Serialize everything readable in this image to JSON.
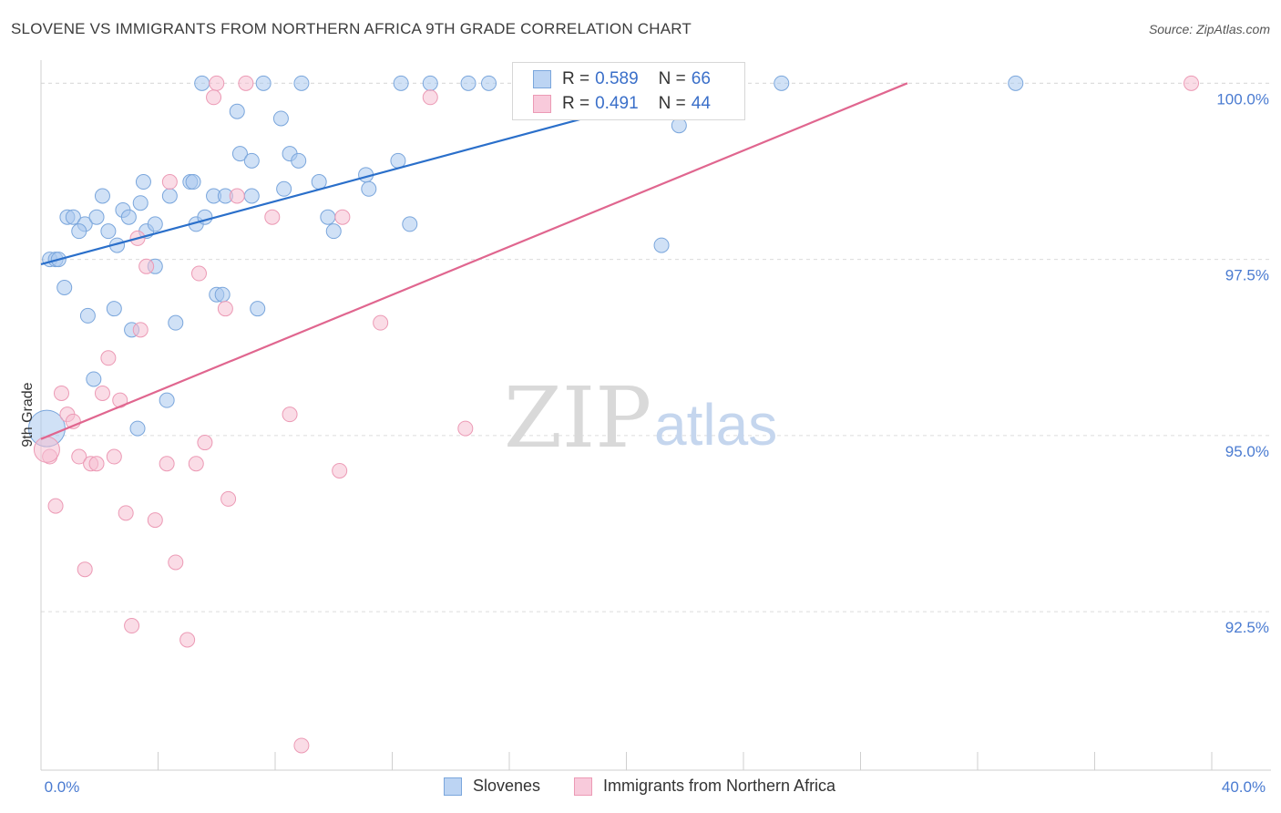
{
  "title": "SLOVENE VS IMMIGRANTS FROM NORTHERN AFRICA 9TH GRADE CORRELATION CHART",
  "source": "Source: ZipAtlas.com",
  "watermark": {
    "zip": "ZIP",
    "atlas": "atlas"
  },
  "legend": {
    "rows": [
      {
        "r_label": "R =",
        "r_value": "0.589",
        "n_label": "N =",
        "n_value": "66"
      },
      {
        "r_label": "R =",
        "r_value": "0.491",
        "n_label": "N =",
        "n_value": "44"
      }
    ]
  },
  "bottom_legend": [
    "Slovenes",
    "Immigrants from Northern Africa"
  ],
  "colors": {
    "blue_fill": "#a9c8ef",
    "blue_stroke": "#7aa6dc",
    "blue_line": "#2a6fca",
    "pink_fill": "#f6bfd1",
    "pink_stroke": "#ec9ab5",
    "pink_line": "#e0668f",
    "axis_text": "#4a7bd1",
    "grid": "#dcdcdc"
  },
  "chart_data": {
    "type": "scatter",
    "title": "SLOVENE VS IMMIGRANTS FROM NORTHERN AFRICA 9TH GRADE CORRELATION CHART",
    "xlabel": "",
    "ylabel": "9th Grade",
    "xlim": [
      0,
      40
    ],
    "ylim": [
      90.25,
      100.25
    ],
    "x_tick_labels": [
      "0.0%",
      "40.0%"
    ],
    "y_ticks": [
      92.5,
      95.0,
      97.5,
      100.0
    ],
    "y_tick_labels": [
      "92.5%",
      "95.0%",
      "97.5%",
      "100.0%"
    ],
    "grid": true,
    "legend_position": "top-center",
    "series": [
      {
        "name": "Slovenes",
        "color": "#a9c8ef",
        "trend": {
          "x": [
            0.0,
            23.0
          ],
          "y": [
            97.43,
            100.0
          ]
        },
        "points": [
          [
            5.5,
            100.0
          ],
          [
            7.6,
            100.0
          ],
          [
            8.9,
            100.0
          ],
          [
            12.3,
            100.0
          ],
          [
            13.3,
            100.0
          ],
          [
            14.6,
            100.0
          ],
          [
            15.3,
            100.0
          ],
          [
            25.3,
            100.0
          ],
          [
            33.3,
            100.0
          ],
          [
            6.7,
            99.6
          ],
          [
            8.2,
            99.5
          ],
          [
            21.8,
            99.4
          ],
          [
            6.8,
            99.0
          ],
          [
            7.2,
            98.9
          ],
          [
            8.5,
            99.0
          ],
          [
            8.8,
            98.9
          ],
          [
            12.2,
            98.9
          ],
          [
            3.5,
            98.6
          ],
          [
            5.1,
            98.6
          ],
          [
            5.2,
            98.6
          ],
          [
            8.3,
            98.5
          ],
          [
            9.5,
            98.6
          ],
          [
            11.1,
            98.7
          ],
          [
            2.1,
            98.4
          ],
          [
            3.4,
            98.3
          ],
          [
            4.4,
            98.4
          ],
          [
            5.9,
            98.4
          ],
          [
            6.3,
            98.4
          ],
          [
            7.2,
            98.4
          ],
          [
            11.2,
            98.5
          ],
          [
            0.9,
            98.1
          ],
          [
            1.1,
            98.1
          ],
          [
            1.5,
            98.0
          ],
          [
            1.9,
            98.1
          ],
          [
            2.8,
            98.2
          ],
          [
            3.0,
            98.1
          ],
          [
            3.6,
            97.9
          ],
          [
            3.9,
            98.0
          ],
          [
            5.3,
            98.0
          ],
          [
            5.6,
            98.1
          ],
          [
            9.8,
            98.1
          ],
          [
            10.0,
            97.9
          ],
          [
            12.6,
            98.0
          ],
          [
            1.3,
            97.9
          ],
          [
            2.3,
            97.9
          ],
          [
            2.6,
            97.7
          ],
          [
            21.2,
            97.7
          ],
          [
            0.3,
            97.5
          ],
          [
            0.5,
            97.5
          ],
          [
            0.6,
            97.5
          ],
          [
            3.9,
            97.4
          ],
          [
            0.8,
            97.1
          ],
          [
            6.0,
            97.0
          ],
          [
            6.2,
            97.0
          ],
          [
            1.6,
            96.7
          ],
          [
            2.5,
            96.8
          ],
          [
            4.6,
            96.6
          ],
          [
            7.4,
            96.8
          ],
          [
            3.1,
            96.5
          ],
          [
            1.8,
            95.8
          ],
          [
            4.3,
            95.5
          ],
          [
            3.3,
            95.1
          ],
          [
            0.2,
            95.1
          ],
          [
            3.1,
            96.5
          ],
          [
            5.2,
            98.4
          ],
          [
            10.9,
            98.1
          ]
        ],
        "point_radii": [
          8,
          8,
          8,
          8,
          8,
          8,
          8,
          8,
          8,
          8,
          8,
          8,
          8,
          8,
          8,
          8,
          8,
          8,
          8,
          8,
          8,
          8,
          8,
          8,
          8,
          8,
          8,
          8,
          8,
          8,
          8,
          8,
          8,
          8,
          8,
          8,
          8,
          8,
          8,
          8,
          8,
          8,
          8,
          8,
          8,
          8,
          8,
          8,
          8,
          8,
          8,
          8,
          8,
          8,
          8,
          8,
          8,
          8,
          8,
          8,
          8,
          8,
          20,
          0,
          0,
          0
        ]
      },
      {
        "name": "Immigrants from Northern Africa",
        "color": "#f6bfd1",
        "trend": {
          "x": [
            0.0,
            29.6
          ],
          "y": [
            94.95,
            100.0
          ]
        },
        "points": [
          [
            6.0,
            100.0
          ],
          [
            7.0,
            100.0
          ],
          [
            39.3,
            100.0
          ],
          [
            5.9,
            99.8
          ],
          [
            13.3,
            99.8
          ],
          [
            4.4,
            98.6
          ],
          [
            6.7,
            98.4
          ],
          [
            7.9,
            98.1
          ],
          [
            10.3,
            98.1
          ],
          [
            3.3,
            97.8
          ],
          [
            3.6,
            97.4
          ],
          [
            5.4,
            97.3
          ],
          [
            6.3,
            96.8
          ],
          [
            11.6,
            96.6
          ],
          [
            3.4,
            96.5
          ],
          [
            2.3,
            96.1
          ],
          [
            0.7,
            95.6
          ],
          [
            2.1,
            95.6
          ],
          [
            2.7,
            95.5
          ],
          [
            0.9,
            95.3
          ],
          [
            1.1,
            95.2
          ],
          [
            8.5,
            95.3
          ],
          [
            14.5,
            95.1
          ],
          [
            5.6,
            94.9
          ],
          [
            0.3,
            94.7
          ],
          [
            1.3,
            94.7
          ],
          [
            1.7,
            94.6
          ],
          [
            1.9,
            94.6
          ],
          [
            2.5,
            94.7
          ],
          [
            4.3,
            94.6
          ],
          [
            5.3,
            94.6
          ],
          [
            10.2,
            94.5
          ],
          [
            0.5,
            94.0
          ],
          [
            2.9,
            93.9
          ],
          [
            3.9,
            93.8
          ],
          [
            6.4,
            94.1
          ],
          [
            1.5,
            93.1
          ],
          [
            4.6,
            93.2
          ],
          [
            3.1,
            92.3
          ],
          [
            5.0,
            92.1
          ],
          [
            8.9,
            90.6
          ],
          [
            0.2,
            94.8
          ],
          [
            0.4,
            94.9
          ],
          [
            0.1,
            94.75
          ]
        ],
        "point_radii": [
          8,
          8,
          8,
          8,
          8,
          8,
          8,
          8,
          8,
          8,
          8,
          8,
          8,
          8,
          8,
          8,
          8,
          8,
          8,
          8,
          8,
          8,
          8,
          8,
          8,
          8,
          8,
          8,
          8,
          8,
          8,
          8,
          8,
          8,
          8,
          8,
          8,
          8,
          8,
          8,
          8,
          14,
          0,
          0
        ]
      }
    ]
  }
}
